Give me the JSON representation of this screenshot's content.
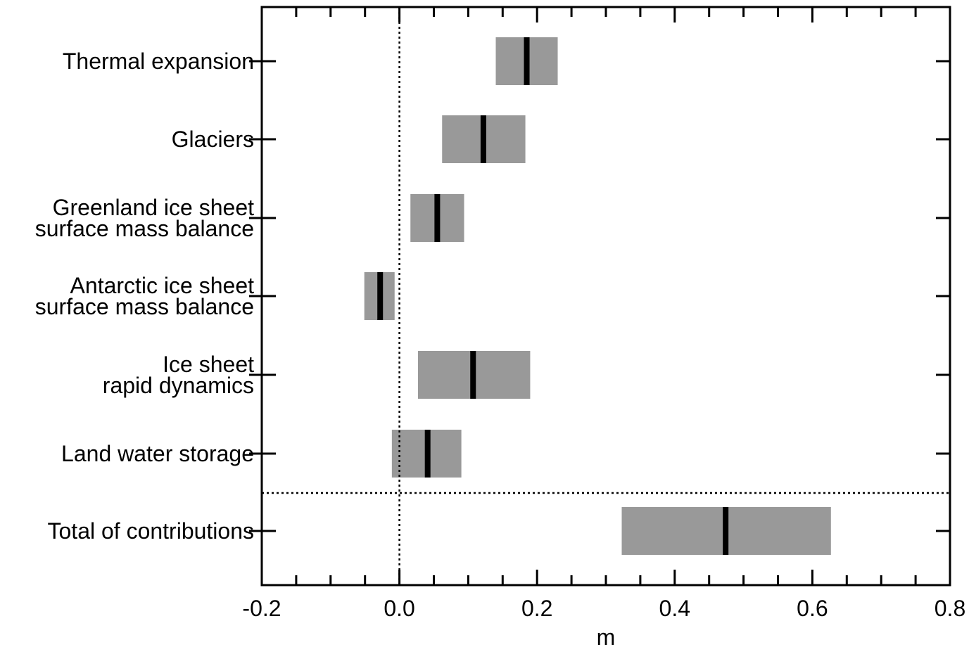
{
  "chart_data": {
    "type": "bar",
    "orientation": "horizontal",
    "style": "range-with-median",
    "xlabel": "m",
    "xlim": [
      -0.2,
      0.8
    ],
    "xticks": [
      "-0.2",
      "0.0",
      "0.2",
      "0.4",
      "0.6",
      "0.8"
    ],
    "xtick_values": [
      -0.2,
      0.0,
      0.2,
      0.4,
      0.6,
      0.8
    ],
    "reference_line_x": 0.0,
    "separator_after_index": 5,
    "grid": false,
    "range_color": "#999999",
    "median_color": "#000000",
    "categories": [
      {
        "lines": [
          "Thermal expansion"
        ],
        "low": 0.14,
        "high": 0.23,
        "median": 0.185
      },
      {
        "lines": [
          "Glaciers"
        ],
        "low": 0.062,
        "high": 0.183,
        "median": 0.122
      },
      {
        "lines": [
          "Greenland ice sheet",
          "surface mass balance"
        ],
        "low": 0.016,
        "high": 0.094,
        "median": 0.055
      },
      {
        "lines": [
          "Antarctic ice sheet",
          "surface mass balance"
        ],
        "low": -0.051,
        "high": -0.007,
        "median": -0.028
      },
      {
        "lines": [
          "Ice sheet",
          "rapid dynamics"
        ],
        "low": 0.027,
        "high": 0.19,
        "median": 0.107
      },
      {
        "lines": [
          "Land water storage"
        ],
        "low": -0.011,
        "high": 0.09,
        "median": 0.041
      },
      {
        "lines": [
          "Total of contributions"
        ],
        "low": 0.323,
        "high": 0.627,
        "median": 0.474
      }
    ]
  }
}
